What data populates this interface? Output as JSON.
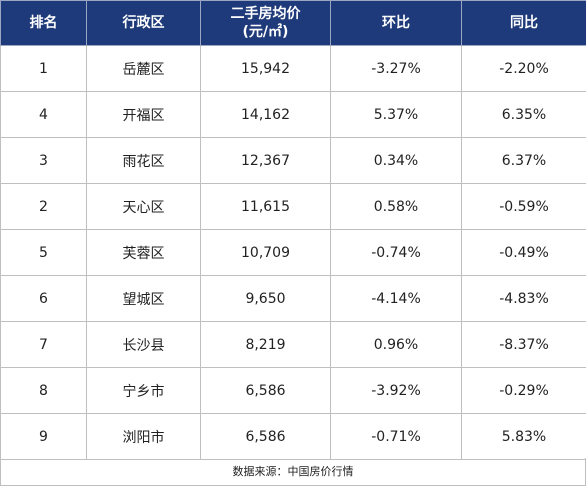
{
  "table": {
    "headers": {
      "rank": "排名",
      "district": "行政区",
      "price_line1": "二手房均价",
      "price_line2": "(元/㎡)",
      "mom": "环比",
      "yoy": "同比"
    },
    "rows": [
      {
        "rank": "1",
        "district": "岳麓区",
        "price": "15,942",
        "mom": "-3.27%",
        "yoy": "-2.20%"
      },
      {
        "rank": "4",
        "district": "开福区",
        "price": "14,162",
        "mom": "5.37%",
        "yoy": "6.35%"
      },
      {
        "rank": "3",
        "district": "雨花区",
        "price": "12,367",
        "mom": "0.34%",
        "yoy": "6.37%"
      },
      {
        "rank": "2",
        "district": "天心区",
        "price": "11,615",
        "mom": "0.58%",
        "yoy": "-0.59%"
      },
      {
        "rank": "5",
        "district": "芙蓉区",
        "price": "10,709",
        "mom": "-0.74%",
        "yoy": "-0.49%"
      },
      {
        "rank": "6",
        "district": "望城区",
        "price": "9,650",
        "mom": "-4.14%",
        "yoy": "-4.83%"
      },
      {
        "rank": "7",
        "district": "长沙县",
        "price": "8,219",
        "mom": "0.96%",
        "yoy": "-8.37%"
      },
      {
        "rank": "8",
        "district": "宁乡市",
        "price": "6,586",
        "mom": "-3.92%",
        "yoy": "-0.29%"
      },
      {
        "rank": "9",
        "district": "浏阳市",
        "price": "6,586",
        "mom": "-0.71%",
        "yoy": "5.83%"
      }
    ]
  },
  "footer": {
    "source": "数据来源：中国房价行情"
  },
  "colors": {
    "header_bg": "#1f3a7a",
    "header_text": "#ffffff"
  }
}
